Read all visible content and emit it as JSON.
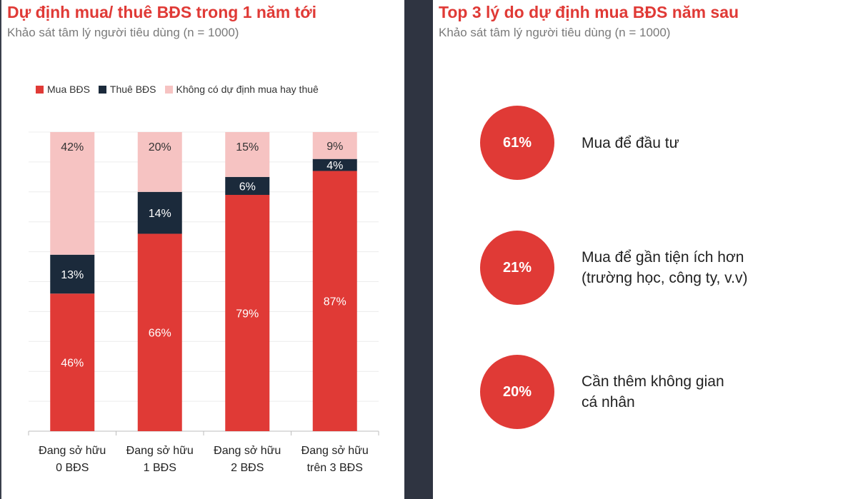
{
  "left": {
    "title": "Dự định mua/ thuê BĐS trong 1 năm tới",
    "subtitle": "Khảo sát tâm lý người tiêu dùng (n = 1000)"
  },
  "right": {
    "title": "Top 3 lý do dự định mua BĐS năm sau",
    "subtitle": "Khảo sát tâm lý người tiêu dùng (n = 1000)",
    "reasons": [
      {
        "value": "61%",
        "lines": [
          "Mua để đầu tư"
        ]
      },
      {
        "value": "21%",
        "lines": [
          "Mua để gần tiện ích hơn",
          "(trường học, công ty, v.v)"
        ]
      },
      {
        "value": "20%",
        "lines": [
          "Cần thêm không gian",
          "cá nhân"
        ]
      }
    ]
  },
  "chart_data": {
    "type": "bar",
    "stacked": true,
    "title": "Dự định mua/ thuê BĐS trong 1 năm tới",
    "subtitle": "Khảo sát tâm lý người tiêu dùng (n = 1000)",
    "categories": [
      [
        "Đang sở hữu",
        "0 BĐS"
      ],
      [
        "Đang sở hữu",
        "1 BĐS"
      ],
      [
        "Đang sở hữu",
        "2 BĐS"
      ],
      [
        "Đang sở hữu",
        "trên 3 BĐS"
      ]
    ],
    "series": [
      {
        "name": "Mua BĐS",
        "color": "#e03a36",
        "values": [
          46,
          66,
          79,
          87
        ],
        "labels": [
          "46%",
          "66%",
          "79%",
          "87%"
        ]
      },
      {
        "name": "Thuê BĐS",
        "color": "#1b2a3b",
        "values": [
          13,
          14,
          6,
          4
        ],
        "labels": [
          "13%",
          "14%",
          "6%",
          "4%"
        ]
      },
      {
        "name": "Không có dự định mua hay thuê",
        "color": "#f6c3c2",
        "values": [
          42,
          20,
          15,
          9
        ],
        "labels": [
          "42%",
          "20%",
          "15%",
          "9%"
        ]
      }
    ],
    "ylim": [
      0,
      100
    ],
    "grid": true,
    "legend_position": "top-left"
  }
}
